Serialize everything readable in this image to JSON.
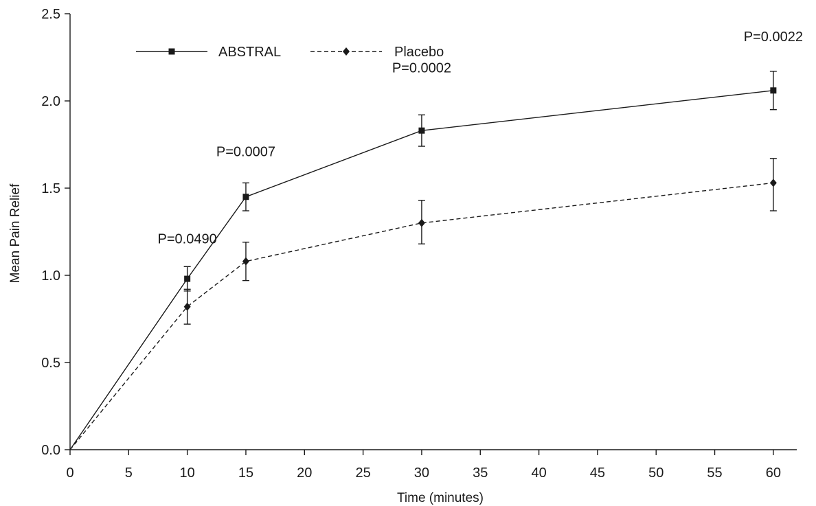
{
  "chart_data": {
    "type": "line",
    "title": "",
    "xlabel": "Time (minutes)",
    "ylabel": "Mean Pain Relief",
    "xlim": [
      0,
      62
    ],
    "ylim": [
      0,
      2.5
    ],
    "xticks": [
      0,
      5,
      10,
      15,
      20,
      25,
      30,
      35,
      40,
      45,
      50,
      55,
      60
    ],
    "yticks": [
      "0.0",
      "0.5",
      "1.0",
      "1.5",
      "2.0",
      "2.5"
    ],
    "grid": false,
    "legend": {
      "placement": "top-left"
    },
    "series": [
      {
        "name": "ABSTRAL",
        "line_style": "solid",
        "marker": "square",
        "color": "#1a1a1a",
        "x": [
          0,
          10,
          15,
          30,
          60
        ],
        "y": [
          0,
          0.98,
          1.45,
          1.83,
          2.06
        ],
        "err_low": [
          null,
          0.91,
          1.37,
          1.74,
          1.95
        ],
        "err_high": [
          null,
          1.05,
          1.53,
          1.92,
          2.17
        ]
      },
      {
        "name": "Placebo",
        "line_style": "dashed",
        "marker": "diamond",
        "color": "#1a1a1a",
        "x": [
          0,
          10,
          15,
          30,
          60
        ],
        "y": [
          0,
          0.82,
          1.08,
          1.3,
          1.53
        ],
        "err_low": [
          null,
          0.72,
          0.97,
          1.18,
          1.37
        ],
        "err_high": [
          null,
          0.92,
          1.19,
          1.43,
          1.67
        ]
      }
    ],
    "annotations": [
      {
        "text": "P=0.0490",
        "x": 10,
        "y": 1.21
      },
      {
        "text": "P=0.0007",
        "x": 15,
        "y": 1.71
      },
      {
        "text": "P=0.0002",
        "x": 30,
        "y": 2.19
      },
      {
        "text": "P=0.0022",
        "x": 60,
        "y": 2.37
      }
    ]
  }
}
